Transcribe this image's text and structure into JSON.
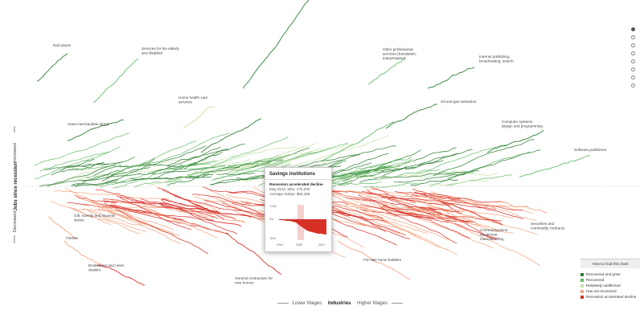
{
  "chart_data": {
    "type": "line",
    "ylabel": "Jobs since recession",
    "y_top_label": "Increased",
    "y_bottom_label": "Decreased",
    "x_axis": {
      "left": "Lower Wages",
      "center": "Industries",
      "right": "Higher Wages"
    },
    "categories_legend": {
      "title": "How to read this chart",
      "items": [
        {
          "label": "Recovered and grew",
          "color": "#2e7d32"
        },
        {
          "label": "Recovered",
          "color": "#66bb6a"
        },
        {
          "label": "Relatively unaffected",
          "color": "#c5e1a5"
        },
        {
          "label": "Has not recovered",
          "color": "#f4a582"
        },
        {
          "label": "Recession accelerated decline",
          "color": "#d73027"
        }
      ]
    },
    "annotations": [
      {
        "text": [
          "Rail sisters"
        ]
      },
      {
        "text": [
          "Services for the elderly",
          "and disabled"
        ]
      },
      {
        "text": [
          "Other professional",
          "services (translation,",
          "interpretation)"
        ]
      },
      {
        "text": [
          "Internet publishing,",
          "broadcasting, search"
        ]
      },
      {
        "text": [
          "Home health care",
          "services"
        ]
      },
      {
        "text": [
          "Oil and gas extraction"
        ]
      },
      {
        "text": [
          "Used merchandise stores"
        ]
      },
      {
        "text": [
          "Computer systems",
          "design and programming"
        ]
      },
      {
        "text": [
          "Software publishers"
        ]
      },
      {
        "text": [
          "Gift, novelty and souvenir",
          "stores"
        ]
      },
      {
        "text": [
          "Communications",
          "equipment",
          "manufacturing"
        ]
      },
      {
        "text": [
          "Securities and",
          "commodity contracts"
        ]
      },
      {
        "text": [
          "Florists"
        ]
      },
      {
        "text": [
          "Bookstores and news",
          "dealers"
        ]
      },
      {
        "text": [
          "General contractors for",
          "new homes"
        ]
      },
      {
        "text": [
          "For-sale home builders"
        ]
      }
    ],
    "tooltip": {
      "title": "Savings institutions",
      "status": "Recession accelerated decline",
      "jobs": "May 2012 Jobs: 175,200",
      "salary": "Average Salary: $56,308",
      "y_ticks": [
        "+10%",
        "0%",
        "-30%"
      ],
      "x_ticks": [
        "2004",
        "2008",
        "2012"
      ]
    }
  },
  "nav": {
    "dot_count": 8,
    "active_index": 0
  }
}
